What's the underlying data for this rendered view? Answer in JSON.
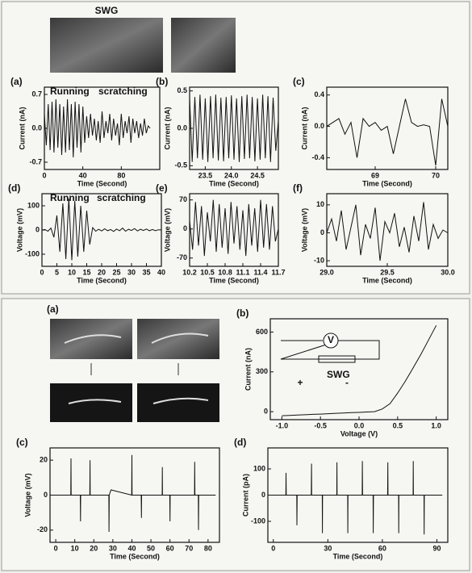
{
  "photos": {
    "label": "SWG"
  },
  "bottom_photos": {
    "panel": "(a)"
  },
  "chart_data": [
    {
      "type": "line",
      "panel": "(a)",
      "ylabel": "Current (nA)",
      "xlabel": "Time (Second)",
      "annotations": [
        "Running",
        "scratching"
      ],
      "xlim": [
        0,
        120
      ],
      "ylim": [
        -0.85,
        0.85
      ],
      "xticks": [
        0,
        40,
        80
      ],
      "yticks": [
        0.7,
        {
          "value": 0,
          "label": "0.0"
        },
        -0.7
      ],
      "color": "#111111",
      "x": [
        0,
        2,
        4,
        6,
        8,
        10,
        12,
        14,
        16,
        18,
        20,
        22,
        24,
        26,
        28,
        30,
        32,
        34,
        36,
        38,
        40,
        42,
        44,
        46,
        48,
        50,
        52,
        54,
        56,
        58,
        60,
        62,
        64,
        66,
        68,
        70,
        72,
        74,
        76,
        78,
        80,
        82,
        84,
        86,
        88,
        90,
        92,
        94,
        96,
        98,
        100,
        102,
        104,
        106,
        108,
        110
      ],
      "values": [
        0.3,
        -0.35,
        0.5,
        -0.45,
        0.55,
        -0.5,
        0.6,
        -0.4,
        0.5,
        -0.55,
        0.45,
        -0.5,
        0.6,
        -0.45,
        0.5,
        -0.6,
        0.55,
        -0.4,
        0.5,
        -0.5,
        0.45,
        -0.3,
        0.25,
        -0.2,
        0.3,
        -0.15,
        0.2,
        -0.25,
        0.15,
        -0.3,
        0.35,
        -0.2,
        0.15,
        -0.1,
        0.3,
        -0.25,
        0.2,
        -0.15,
        0.1,
        -0.35,
        0.3,
        -0.2,
        0.15,
        -0.1,
        0.25,
        -0.3,
        0.2,
        -0.1,
        0.15,
        -0.2,
        0.1,
        -0.15,
        0.2,
        -0.1,
        0.05,
        0
      ]
    },
    {
      "type": "line",
      "panel": "(b)",
      "ylabel": "Current (nA)",
      "xlabel": "Time (Second)",
      "xlim": [
        23.2,
        24.9
      ],
      "ylim": [
        -0.55,
        0.55
      ],
      "xticks": [
        23.5,
        {
          "value": 24,
          "label": "24.0"
        },
        24.5
      ],
      "yticks": [
        0.5,
        {
          "value": 0,
          "label": "0.0"
        },
        -0.5
      ],
      "color": "#111111",
      "x": [
        23.2,
        23.25,
        23.3,
        23.35,
        23.4,
        23.45,
        23.5,
        23.55,
        23.6,
        23.65,
        23.7,
        23.75,
        23.8,
        23.85,
        23.9,
        23.95,
        24.0,
        24.05,
        24.1,
        24.15,
        24.2,
        24.25,
        24.3,
        24.35,
        24.4,
        24.45,
        24.5,
        24.55,
        24.6,
        24.65,
        24.7,
        24.75,
        24.8,
        24.85,
        24.9
      ],
      "values": [
        0.4,
        -0.45,
        0.42,
        -0.4,
        0.45,
        -0.42,
        0.4,
        -0.45,
        0.43,
        -0.4,
        0.45,
        -0.43,
        0.41,
        -0.44,
        0.42,
        -0.4,
        0.44,
        -0.42,
        0.4,
        -0.45,
        0.43,
        -0.41,
        0.45,
        -0.4,
        0.42,
        -0.44,
        0.4,
        -0.42,
        0.45,
        -0.4,
        0.43,
        -0.45,
        0.41,
        -0.3,
        0.1
      ]
    },
    {
      "type": "line",
      "panel": "(c)",
      "ylabel": "Current (nA)",
      "xlabel": "Time (Second)",
      "xlim": [
        68.2,
        70.2
      ],
      "ylim": [
        -0.55,
        0.5
      ],
      "xticks": [
        69,
        70
      ],
      "yticks": [
        0.4,
        {
          "value": 0,
          "label": "0.0"
        },
        -0.4
      ],
      "color": "#111111",
      "x": [
        68.2,
        68.3,
        68.4,
        68.5,
        68.6,
        68.7,
        68.8,
        68.9,
        69.0,
        69.1,
        69.2,
        69.3,
        69.4,
        69.5,
        69.6,
        69.7,
        69.8,
        69.9,
        70.0,
        70.1,
        70.2
      ],
      "values": [
        0,
        0.05,
        0.1,
        -0.1,
        0.05,
        -0.4,
        0.1,
        0,
        0.05,
        -0.05,
        0,
        -0.35,
        0,
        0.35,
        0.05,
        0,
        0.02,
        0,
        -0.5,
        0.35,
        0
      ]
    },
    {
      "type": "line",
      "panel": "(d)",
      "ylabel": "Voltage (mV)",
      "xlabel": "Time (Second)",
      "annotations": [
        "Running",
        "scratching"
      ],
      "xlim": [
        0,
        40
      ],
      "ylim": [
        -150,
        150
      ],
      "xticks": [
        0,
        5,
        10,
        15,
        20,
        25,
        30,
        35,
        40
      ],
      "yticks": [
        100,
        0,
        -100
      ],
      "color": "#111111",
      "x": [
        0,
        1,
        2,
        3,
        4,
        5,
        6,
        7,
        8,
        9,
        10,
        11,
        12,
        13,
        14,
        15,
        16,
        17,
        18,
        19,
        20,
        21,
        22,
        23,
        24,
        25,
        26,
        27,
        28,
        29,
        30,
        31,
        32,
        33,
        34,
        35,
        36,
        37,
        38,
        39,
        40
      ],
      "values": [
        0,
        2,
        -5,
        8,
        -30,
        60,
        -90,
        110,
        -120,
        130,
        -125,
        120,
        -110,
        100,
        -90,
        80,
        -60,
        10,
        -5,
        3,
        -4,
        5,
        -3,
        2,
        -6,
        4,
        -3,
        8,
        -5,
        3,
        -2,
        6,
        -4,
        3,
        -2,
        4,
        -3,
        2,
        -3,
        1,
        0
      ]
    },
    {
      "type": "line",
      "panel": "(e)",
      "ylabel": "Voltage (mV)",
      "xlabel": "Time (Second)",
      "xlim": [
        10.2,
        11.7
      ],
      "ylim": [
        -90,
        85
      ],
      "xticks": [
        10.2,
        10.5,
        10.8,
        11.1,
        11.4,
        11.7
      ],
      "yticks": [
        70,
        0,
        -70
      ],
      "color": "#111111",
      "x": [
        10.2,
        10.25,
        10.3,
        10.35,
        10.4,
        10.45,
        10.5,
        10.55,
        10.6,
        10.65,
        10.7,
        10.75,
        10.8,
        10.85,
        10.9,
        10.95,
        11.0,
        11.05,
        11.1,
        11.15,
        11.2,
        11.25,
        11.3,
        11.35,
        11.4,
        11.45,
        11.5,
        11.55,
        11.6,
        11.65,
        11.7
      ],
      "values": [
        20,
        -50,
        65,
        -40,
        55,
        -65,
        40,
        -30,
        70,
        -55,
        60,
        -45,
        50,
        -60,
        65,
        -35,
        55,
        -50,
        45,
        -65,
        60,
        -40,
        50,
        -55,
        70,
        -45,
        60,
        -50,
        55,
        -30,
        0
      ]
    },
    {
      "type": "line",
      "panel": "(f)",
      "ylabel": "Voltage (mV)",
      "xlabel": "Time (Second)",
      "xlim": [
        29,
        30
      ],
      "ylim": [
        -12,
        14
      ],
      "xticks": [
        {
          "value": 29,
          "label": "29.0"
        },
        29.5,
        {
          "value": 30,
          "label": "30.0"
        }
      ],
      "yticks": [
        10,
        0,
        -10
      ],
      "color": "#111111",
      "x": [
        29.0,
        29.04,
        29.08,
        29.12,
        29.16,
        29.2,
        29.24,
        29.28,
        29.32,
        29.36,
        29.4,
        29.44,
        29.48,
        29.52,
        29.56,
        29.6,
        29.64,
        29.68,
        29.72,
        29.76,
        29.8,
        29.84,
        29.88,
        29.92,
        29.96,
        30.0
      ],
      "values": [
        0,
        5,
        -3,
        8,
        -6,
        2,
        10,
        -8,
        3,
        -2,
        9,
        -10,
        4,
        0,
        7,
        -5,
        2,
        -7,
        6,
        -3,
        11,
        -6,
        3,
        -2,
        1,
        0
      ]
    },
    {
      "type": "line",
      "panel": "(b)",
      "ylabel": "Current (nA)",
      "xlabel": "Voltage (V)",
      "annotations": [
        "V",
        "SWG",
        "+",
        "-"
      ],
      "xlim": [
        -1.15,
        1.15
      ],
      "ylim": [
        -60,
        700
      ],
      "xticks": [
        {
          "value": -1,
          "label": "-1.0"
        },
        -0.5,
        {
          "value": 0,
          "label": "0.0"
        },
        0.5,
        {
          "value": 1,
          "label": "1.0"
        }
      ],
      "yticks": [
        0,
        300,
        600
      ],
      "color": "#111111",
      "x": [
        -1.0,
        -0.9,
        -0.8,
        -0.7,
        -0.6,
        -0.5,
        -0.4,
        -0.3,
        -0.2,
        -0.1,
        0.0,
        0.1,
        0.2,
        0.3,
        0.4,
        0.5,
        0.6,
        0.7,
        0.8,
        0.9,
        1.0
      ],
      "values": [
        -30,
        -28,
        -25,
        -23,
        -20,
        -18,
        -15,
        -12,
        -10,
        -7,
        -5,
        -2,
        0,
        20,
        60,
        140,
        230,
        330,
        430,
        540,
        650
      ]
    },
    {
      "type": "line",
      "panel": "(c)",
      "ylabel": "Voltage (mV)",
      "xlabel": "Time (Second)",
      "xlim": [
        -3,
        86
      ],
      "ylim": [
        -27,
        27
      ],
      "xticks": [
        0,
        10,
        20,
        30,
        40,
        50,
        60,
        70,
        80
      ],
      "yticks": [
        20,
        0,
        -20
      ],
      "color": "#111111",
      "x": [
        -2,
        7.9,
        8,
        8.1,
        12.9,
        13,
        13.1,
        17.9,
        18,
        18.1,
        27.9,
        28,
        28.1,
        29,
        39.9,
        40,
        40.1,
        44.9,
        45,
        45.1,
        55.9,
        56,
        56.1,
        59.9,
        60,
        60.1,
        72.9,
        73,
        73.1,
        74.9,
        75,
        75.1,
        84
      ],
      "values": [
        0,
        0,
        21,
        0,
        0,
        -15,
        0,
        0,
        20,
        0,
        0,
        -21,
        0,
        3,
        0,
        23,
        0,
        0,
        -13,
        0,
        0,
        16,
        0,
        0,
        -15,
        0,
        0,
        19,
        0,
        0,
        -20,
        0,
        0
      ]
    },
    {
      "type": "line",
      "panel": "(d)",
      "ylabel": "Current (pA)",
      "xlabel": "Time (Second)",
      "xlim": [
        -3,
        96
      ],
      "ylim": [
        -180,
        180
      ],
      "xticks": [
        0,
        30,
        60,
        90
      ],
      "yticks": [
        100,
        0,
        -100
      ],
      "color": "#111111",
      "x": [
        -2,
        6.9,
        7,
        7.1,
        12.9,
        13,
        13.1,
        20.9,
        21,
        21.1,
        26.9,
        27,
        27.1,
        34.9,
        35,
        35.1,
        40.9,
        41,
        41.1,
        48.9,
        49,
        49.1,
        54.9,
        55,
        55.1,
        62.9,
        63,
        63.1,
        68.9,
        69,
        69.1,
        76.9,
        77,
        77.1,
        82.9,
        83,
        83.1,
        93
      ],
      "values": [
        0,
        0,
        85,
        0,
        0,
        -115,
        0,
        0,
        120,
        0,
        0,
        -145,
        0,
        0,
        125,
        0,
        0,
        -145,
        0,
        0,
        130,
        0,
        0,
        -145,
        0,
        0,
        125,
        0,
        0,
        -145,
        0,
        0,
        130,
        0,
        0,
        -150,
        0,
        0
      ]
    }
  ]
}
